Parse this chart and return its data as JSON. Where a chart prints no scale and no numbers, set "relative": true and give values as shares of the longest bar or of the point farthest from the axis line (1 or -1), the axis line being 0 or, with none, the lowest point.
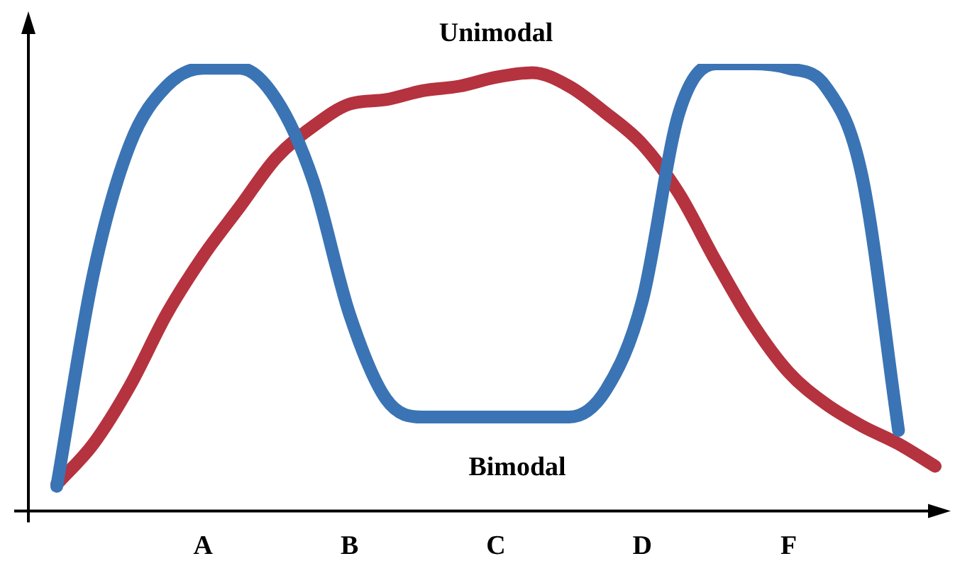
{
  "chart_data": {
    "type": "line",
    "relative": true,
    "categories": [
      null,
      null,
      null,
      null,
      "A",
      null,
      null,
      null,
      "B",
      null,
      null,
      null,
      "C",
      null,
      null,
      null,
      "D",
      null,
      null,
      null,
      "F",
      null,
      null,
      null,
      null
    ],
    "series": [
      {
        "color": "#3a74b4",
        "values": [
          0.055,
          0.53,
          0.82,
          0.95,
          0.99,
          0.99,
          0.92,
          0.74,
          0.44,
          0.25,
          0.21,
          0.21,
          0.21,
          0.21,
          0.21,
          0.27,
          0.47,
          0.89,
          1,
          1,
          0.99,
          0.95,
          0.75,
          0.18,
          null
        ]
      },
      {
        "color": "#b5323f",
        "values": [
          0.06,
          0.15,
          0.28,
          0.44,
          0.57,
          0.68,
          0.79,
          0.86,
          0.91,
          0.92,
          0.94,
          0.95,
          0.97,
          0.98,
          0.95,
          0.89,
          0.82,
          0.71,
          0.56,
          0.42,
          0.31,
          0.24,
          0.19,
          0.15,
          0.1
        ]
      }
    ],
    "annotations": [
      "Unimodal",
      "Bimodal"
    ],
    "grid": false,
    "legend": false,
    "marker": "none"
  }
}
